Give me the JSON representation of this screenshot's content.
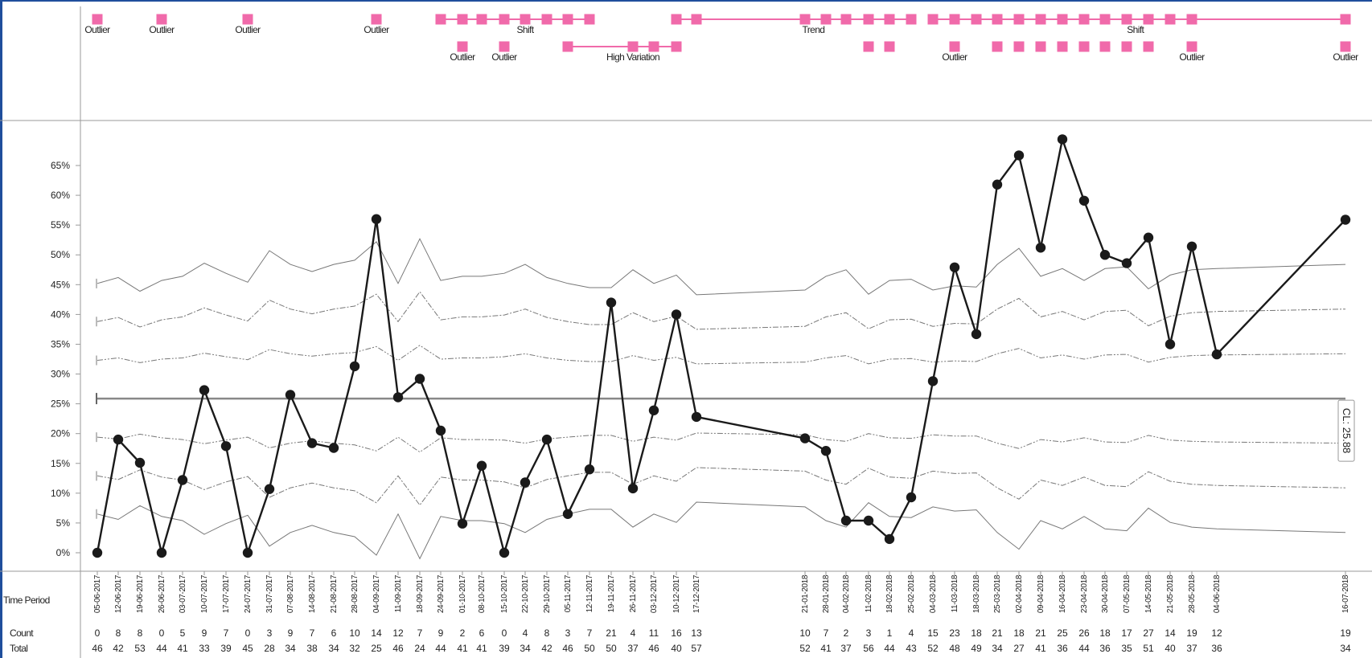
{
  "chart_data": {
    "type": "line",
    "chart_kind": "p-chart",
    "yaxis": {
      "ticks": [
        {
          "v": 0,
          "label": "0%"
        },
        {
          "v": 5,
          "label": "5%"
        },
        {
          "v": 10,
          "label": "10%"
        },
        {
          "v": 15,
          "label": "15%"
        },
        {
          "v": 20,
          "label": "20%"
        },
        {
          "v": 25,
          "label": "25%"
        },
        {
          "v": 30,
          "label": "30%"
        },
        {
          "v": 35,
          "label": "35%"
        },
        {
          "v": 40,
          "label": "40%"
        },
        {
          "v": 45,
          "label": "45%"
        },
        {
          "v": 50,
          "label": "50%"
        },
        {
          "v": 55,
          "label": "55%"
        },
        {
          "v": 60,
          "label": "60%"
        },
        {
          "v": 65,
          "label": "65%"
        }
      ],
      "ylim": [
        -1.5,
        70
      ]
    },
    "center_line": {
      "value": 25.88,
      "label": "CL: 25.88"
    },
    "row_labels": {
      "time": "Time Period",
      "count": "Count",
      "total": "Total"
    },
    "points": [
      {
        "date": "05-06-2017",
        "count": "0",
        "total": "46",
        "value": 0.0,
        "ucl3": 45.2,
        "ucl2": 38.8,
        "ucl1": 32.3,
        "lcl1": 19.4,
        "lcl2": 12.9,
        "lcl3": 6.5
      },
      {
        "date": "12-06-2017",
        "count": "8",
        "total": "42",
        "value": 19.0,
        "ucl3": 46.2,
        "ucl2": 39.5,
        "ucl1": 32.7,
        "lcl1": 19.1,
        "lcl2": 12.3,
        "lcl3": 5.6
      },
      {
        "date": "19-06-2017",
        "count": "8",
        "total": "53",
        "value": 15.1,
        "ucl3": 43.9,
        "ucl2": 37.9,
        "ucl1": 31.9,
        "lcl1": 19.9,
        "lcl2": 13.9,
        "lcl3": 7.9
      },
      {
        "date": "26-06-2017",
        "count": "0",
        "total": "44",
        "value": 0.0,
        "ucl3": 45.7,
        "ucl2": 39.1,
        "ucl1": 32.5,
        "lcl1": 19.3,
        "lcl2": 12.7,
        "lcl3": 6.1
      },
      {
        "date": "03-07-2017",
        "count": "5",
        "total": "41",
        "value": 12.2,
        "ucl3": 46.4,
        "ucl2": 39.6,
        "ucl1": 32.7,
        "lcl1": 19.0,
        "lcl2": 12.2,
        "lcl3": 5.4
      },
      {
        "date": "10-07-2017",
        "count": "9",
        "total": "33",
        "value": 27.3,
        "ucl3": 48.6,
        "ucl2": 41.1,
        "ucl1": 33.5,
        "lcl1": 18.3,
        "lcl2": 10.6,
        "lcl3": 3.1
      },
      {
        "date": "17-07-2017",
        "count": "7",
        "total": "39",
        "value": 17.9,
        "ucl3": 46.9,
        "ucl2": 39.9,
        "ucl1": 32.9,
        "lcl1": 18.9,
        "lcl2": 11.9,
        "lcl3": 4.9
      },
      {
        "date": "24-07-2017",
        "count": "0",
        "total": "45",
        "value": 0.0,
        "ucl3": 45.4,
        "ucl2": 38.9,
        "ucl1": 32.4,
        "lcl1": 19.4,
        "lcl2": 12.8,
        "lcl3": 6.3
      },
      {
        "date": "31-07-2017",
        "count": "3",
        "total": "28",
        "value": 10.7,
        "ucl3": 50.7,
        "ucl2": 42.4,
        "ucl1": 34.1,
        "lcl1": 17.6,
        "lcl2": 9.3,
        "lcl3": 1.1
      },
      {
        "date": "07-08-2017",
        "count": "9",
        "total": "34",
        "value": 26.5,
        "ucl3": 48.4,
        "ucl2": 40.9,
        "ucl1": 33.4,
        "lcl1": 18.4,
        "lcl2": 10.9,
        "lcl3": 3.4
      },
      {
        "date": "14-08-2017",
        "count": "7",
        "total": "38",
        "value": 18.4,
        "ucl3": 47.2,
        "ucl2": 40.1,
        "ucl1": 33.0,
        "lcl1": 18.8,
        "lcl2": 11.7,
        "lcl3": 4.6
      },
      {
        "date": "21-08-2017",
        "count": "6",
        "total": "34",
        "value": 17.6,
        "ucl3": 48.4,
        "ucl2": 40.9,
        "ucl1": 33.4,
        "lcl1": 18.4,
        "lcl2": 10.9,
        "lcl3": 3.4
      },
      {
        "date": "28-08-2017",
        "count": "10",
        "total": "32",
        "value": 31.3,
        "ucl3": 49.1,
        "ucl2": 41.4,
        "ucl1": 33.6,
        "lcl1": 18.1,
        "lcl2": 10.4,
        "lcl3": 2.7
      },
      {
        "date": "04-09-2017",
        "count": "14",
        "total": "25",
        "value": 56.0,
        "ucl3": 52.2,
        "ucl2": 43.4,
        "ucl1": 34.6,
        "lcl1": 17.1,
        "lcl2": 8.4,
        "lcl3": -0.4
      },
      {
        "date": "11-09-2017",
        "count": "12",
        "total": "46",
        "value": 26.1,
        "ucl3": 45.2,
        "ucl2": 38.8,
        "ucl1": 32.3,
        "lcl1": 19.4,
        "lcl2": 12.9,
        "lcl3": 6.5
      },
      {
        "date": "18-09-2017",
        "count": "7",
        "total": "24",
        "value": 29.2,
        "ucl3": 52.7,
        "ucl2": 43.8,
        "ucl1": 34.8,
        "lcl1": 16.9,
        "lcl2": 8.0,
        "lcl3": -1.0
      },
      {
        "date": "24-09-2017",
        "count": "9",
        "total": "44",
        "value": 20.5,
        "ucl3": 45.7,
        "ucl2": 39.1,
        "ucl1": 32.5,
        "lcl1": 19.3,
        "lcl2": 12.7,
        "lcl3": 6.1
      },
      {
        "date": "01-10-2017",
        "count": "2",
        "total": "41",
        "value": 4.9,
        "ucl3": 46.4,
        "ucl2": 39.6,
        "ucl1": 32.7,
        "lcl1": 19.0,
        "lcl2": 12.2,
        "lcl3": 5.4
      },
      {
        "date": "08-10-2017",
        "count": "6",
        "total": "41",
        "value": 14.6,
        "ucl3": 46.4,
        "ucl2": 39.6,
        "ucl1": 32.7,
        "lcl1": 19.0,
        "lcl2": 12.2,
        "lcl3": 5.4
      },
      {
        "date": "15-10-2017",
        "count": "0",
        "total": "39",
        "value": 0.0,
        "ucl3": 46.9,
        "ucl2": 39.9,
        "ucl1": 32.9,
        "lcl1": 18.9,
        "lcl2": 11.9,
        "lcl3": 4.9
      },
      {
        "date": "22-10-2017",
        "count": "4",
        "total": "34",
        "value": 11.8,
        "ucl3": 48.4,
        "ucl2": 40.9,
        "ucl1": 33.4,
        "lcl1": 18.4,
        "lcl2": 10.9,
        "lcl3": 3.4
      },
      {
        "date": "29-10-2017",
        "count": "8",
        "total": "42",
        "value": 19.0,
        "ucl3": 46.2,
        "ucl2": 39.5,
        "ucl1": 32.7,
        "lcl1": 19.1,
        "lcl2": 12.3,
        "lcl3": 5.6
      },
      {
        "date": "05-11-2017",
        "count": "3",
        "total": "46",
        "value": 6.5,
        "ucl3": 45.2,
        "ucl2": 38.8,
        "ucl1": 32.3,
        "lcl1": 19.4,
        "lcl2": 12.9,
        "lcl3": 6.5
      },
      {
        "date": "12-11-2017",
        "count": "7",
        "total": "50",
        "value": 14.0,
        "ucl3": 44.5,
        "ucl2": 38.3,
        "ucl1": 32.1,
        "lcl1": 19.7,
        "lcl2": 13.5,
        "lcl3": 7.3
      },
      {
        "date": "19-11-2017",
        "count": "21",
        "total": "50",
        "value": 42.0,
        "ucl3": 44.5,
        "ucl2": 38.3,
        "ucl1": 32.1,
        "lcl1": 19.7,
        "lcl2": 13.5,
        "lcl3": 7.3
      },
      {
        "date": "26-11-2017",
        "count": "4",
        "total": "37",
        "value": 10.8,
        "ucl3": 47.5,
        "ucl2": 40.3,
        "ucl1": 33.1,
        "lcl1": 18.7,
        "lcl2": 11.5,
        "lcl3": 4.3
      },
      {
        "date": "03-12-2017",
        "count": "11",
        "total": "46",
        "value": 23.9,
        "ucl3": 45.2,
        "ucl2": 38.8,
        "ucl1": 32.3,
        "lcl1": 19.4,
        "lcl2": 12.9,
        "lcl3": 6.5
      },
      {
        "date": "10-12-2017",
        "count": "16",
        "total": "40",
        "value": 40.0,
        "ucl3": 46.6,
        "ucl2": 39.7,
        "ucl1": 32.8,
        "lcl1": 18.9,
        "lcl2": 12.0,
        "lcl3": 5.1
      },
      {
        "date": "17-12-2017",
        "count": "13",
        "total": "57",
        "value": 22.8,
        "ucl3": 43.3,
        "ucl2": 37.5,
        "ucl1": 31.7,
        "lcl1": 20.1,
        "lcl2": 14.3,
        "lcl3": 8.5
      },
      {
        "date": "21-01-2018",
        "count": "10",
        "total": "52",
        "value": 19.2,
        "ucl3": 44.1,
        "ucl2": 38.0,
        "ucl1": 32.0,
        "lcl1": 19.8,
        "lcl2": 13.7,
        "lcl3": 7.7
      },
      {
        "date": "28-01-2018",
        "count": "7",
        "total": "41",
        "value": 17.1,
        "ucl3": 46.4,
        "ucl2": 39.6,
        "ucl1": 32.7,
        "lcl1": 19.0,
        "lcl2": 12.2,
        "lcl3": 5.4
      },
      {
        "date": "04-02-2018",
        "count": "2",
        "total": "37",
        "value": 5.4,
        "ucl3": 47.5,
        "ucl2": 40.3,
        "ucl1": 33.1,
        "lcl1": 18.7,
        "lcl2": 11.5,
        "lcl3": 4.3
      },
      {
        "date": "11-02-2018",
        "count": "3",
        "total": "56",
        "value": 5.4,
        "ucl3": 43.4,
        "ucl2": 37.6,
        "ucl1": 31.7,
        "lcl1": 20.0,
        "lcl2": 14.2,
        "lcl3": 8.4
      },
      {
        "date": "18-02-2018",
        "count": "1",
        "total": "44",
        "value": 2.3,
        "ucl3": 45.7,
        "ucl2": 39.1,
        "ucl1": 32.5,
        "lcl1": 19.3,
        "lcl2": 12.7,
        "lcl3": 6.1
      },
      {
        "date": "25-02-2018",
        "count": "4",
        "total": "43",
        "value": 9.3,
        "ucl3": 45.9,
        "ucl2": 39.2,
        "ucl1": 32.6,
        "lcl1": 19.2,
        "lcl2": 12.5,
        "lcl3": 5.9
      },
      {
        "date": "04-03-2018",
        "count": "15",
        "total": "52",
        "value": 28.8,
        "ucl3": 44.1,
        "ucl2": 38.0,
        "ucl1": 32.0,
        "lcl1": 19.8,
        "lcl2": 13.7,
        "lcl3": 7.7
      },
      {
        "date": "11-03-2018",
        "count": "23",
        "total": "48",
        "value": 47.9,
        "ucl3": 44.8,
        "ucl2": 38.5,
        "ucl1": 32.2,
        "lcl1": 19.6,
        "lcl2": 13.3,
        "lcl3": 7.0
      },
      {
        "date": "18-03-2018",
        "count": "18",
        "total": "49",
        "value": 36.7,
        "ucl3": 44.6,
        "ucl2": 38.4,
        "ucl1": 32.1,
        "lcl1": 19.6,
        "lcl2": 13.4,
        "lcl3": 7.2
      },
      {
        "date": "25-03-2018",
        "count": "21",
        "total": "34",
        "value": 61.8,
        "ucl3": 48.4,
        "ucl2": 40.9,
        "ucl1": 33.4,
        "lcl1": 18.4,
        "lcl2": 10.9,
        "lcl3": 3.4
      },
      {
        "date": "02-04-2018",
        "count": "18",
        "total": "27",
        "value": 66.7,
        "ucl3": 51.1,
        "ucl2": 42.7,
        "ucl1": 34.3,
        "lcl1": 17.5,
        "lcl2": 9.0,
        "lcl3": 0.6
      },
      {
        "date": "09-04-2018",
        "count": "21",
        "total": "41",
        "value": 51.2,
        "ucl3": 46.4,
        "ucl2": 39.6,
        "ucl1": 32.7,
        "lcl1": 19.0,
        "lcl2": 12.2,
        "lcl3": 5.4
      },
      {
        "date": "16-04-2018",
        "count": "25",
        "total": "36",
        "value": 69.4,
        "ucl3": 47.7,
        "ucl2": 40.5,
        "ucl1": 33.2,
        "lcl1": 18.6,
        "lcl2": 11.3,
        "lcl3": 4.0
      },
      {
        "date": "23-04-2018",
        "count": "26",
        "total": "44",
        "value": 59.1,
        "ucl3": 45.7,
        "ucl2": 39.1,
        "ucl1": 32.5,
        "lcl1": 19.3,
        "lcl2": 12.7,
        "lcl3": 6.1
      },
      {
        "date": "30-04-2018",
        "count": "18",
        "total": "36",
        "value": 50.0,
        "ucl3": 47.7,
        "ucl2": 40.5,
        "ucl1": 33.2,
        "lcl1": 18.6,
        "lcl2": 11.3,
        "lcl3": 4.0
      },
      {
        "date": "07-05-2018",
        "count": "17",
        "total": "35",
        "value": 48.6,
        "ucl3": 48.0,
        "ucl2": 40.7,
        "ucl1": 33.3,
        "lcl1": 18.5,
        "lcl2": 11.1,
        "lcl3": 3.7
      },
      {
        "date": "14-05-2018",
        "count": "27",
        "total": "51",
        "value": 52.9,
        "ucl3": 44.3,
        "ucl2": 38.1,
        "ucl1": 32.0,
        "lcl1": 19.7,
        "lcl2": 13.6,
        "lcl3": 7.5
      },
      {
        "date": "21-05-2018",
        "count": "14",
        "total": "40",
        "value": 35.0,
        "ucl3": 46.6,
        "ucl2": 39.7,
        "ucl1": 32.8,
        "lcl1": 18.9,
        "lcl2": 12.0,
        "lcl3": 5.1
      },
      {
        "date": "28-05-2018",
        "count": "19",
        "total": "37",
        "value": 51.4,
        "ucl3": 47.5,
        "ucl2": 40.3,
        "ucl1": 33.1,
        "lcl1": 18.7,
        "lcl2": 11.5,
        "lcl3": 4.3
      },
      {
        "date": "04-06-2018",
        "count": "12",
        "total": "36",
        "value": 33.3,
        "ucl3": 47.7,
        "ucl2": 40.5,
        "ucl1": 33.2,
        "lcl1": 18.6,
        "lcl2": 11.3,
        "lcl3": 4.0
      },
      {
        "date": "16-07-2018",
        "count": "19",
        "total": "34",
        "value": 55.9,
        "ucl3": 48.4,
        "ucl2": 40.9,
        "ucl1": 33.4,
        "lcl1": 18.4,
        "lcl2": 10.9,
        "lcl3": 3.4
      }
    ],
    "rules": {
      "outlier_label": "Outlier",
      "outlier_row1": [
        0,
        3,
        7,
        13
      ],
      "shift1": {
        "label": "Shift",
        "start": 16,
        "end": 23,
        "label_at": 20
      },
      "outlier_row2_a": [
        17,
        19
      ],
      "high_variation": {
        "label": "High Variation",
        "start": 22,
        "end": 27,
        "marks": [
          22,
          25,
          26,
          27
        ],
        "label_at": 25
      },
      "trend": {
        "label": "Trend",
        "start": 27,
        "end": 34,
        "marks": [
          27,
          28,
          29,
          30,
          31,
          32,
          33,
          34
        ],
        "label_at": 29.4
      },
      "shift2": {
        "label": "Shift",
        "start": 35,
        "end": 49,
        "label_at": 44.4
      },
      "row2_b_marks": [
        32,
        33,
        36,
        38,
        39,
        40,
        41,
        42,
        43,
        44,
        45,
        47,
        49
      ],
      "outlier_row2_b": [
        36,
        47,
        49
      ]
    }
  }
}
